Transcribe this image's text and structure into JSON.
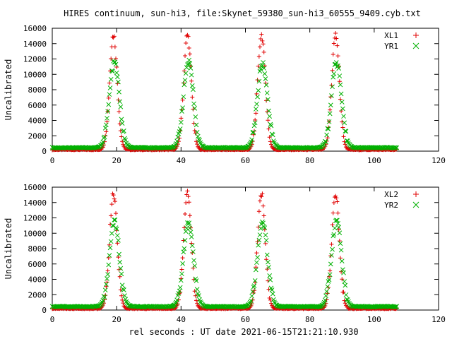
{
  "chart_data": [
    {
      "type": "scatter",
      "title": "HIRES continuum, sun-hi3, file:Skynet_59380_sun-hi3_60555_9409.cyb.txt",
      "xlabel": "",
      "ylabel": "Uncalibrated",
      "xlim": [
        0,
        120
      ],
      "ylim": [
        0,
        16000
      ],
      "x_ticks": [
        0,
        20,
        40,
        60,
        80,
        100,
        120
      ],
      "y_ticks": [
        0,
        2000,
        4000,
        6000,
        8000,
        10000,
        12000,
        14000,
        16000
      ],
      "x_tick_labels": [
        "0",
        "20",
        "40",
        "60",
        "80",
        "100",
        "120"
      ],
      "y_tick_labels": [
        "0",
        "2000",
        "4000",
        "6000",
        "8000",
        "10000",
        "12000",
        "14000",
        "16000"
      ],
      "grid": false,
      "legend_position": "top-right",
      "series": [
        {
          "name": "XL1",
          "marker": "+",
          "color": "#e00000",
          "baseline": 200,
          "peak": 15100,
          "peak_x": [
            19,
            42,
            65,
            88
          ],
          "width": 1.2,
          "x_start": 0,
          "x_end": 107
        },
        {
          "name": "YR1",
          "marker": "x",
          "color": "#00b000",
          "baseline": 450,
          "peak": 11500,
          "peak_x": [
            19.3,
            42.3,
            65.3,
            88.3
          ],
          "width": 1.55,
          "x_start": 0,
          "x_end": 107
        }
      ]
    },
    {
      "type": "scatter",
      "title": "",
      "xlabel": "rel seconds : UT date 2021-06-15T21:21:10.930",
      "ylabel": "Uncalibrated",
      "xlim": [
        0,
        120
      ],
      "ylim": [
        0,
        16000
      ],
      "x_ticks": [
        0,
        20,
        40,
        60,
        80,
        100,
        120
      ],
      "y_ticks": [
        0,
        2000,
        4000,
        6000,
        8000,
        10000,
        12000,
        14000,
        16000
      ],
      "x_tick_labels": [
        "0",
        "20",
        "40",
        "60",
        "80",
        "100",
        "120"
      ],
      "y_tick_labels": [
        "0",
        "2000",
        "4000",
        "6000",
        "8000",
        "10000",
        "12000",
        "14000",
        "16000"
      ],
      "grid": false,
      "legend_position": "top-right",
      "series": [
        {
          "name": "XL2",
          "marker": "+",
          "color": "#e00000",
          "baseline": 200,
          "peak": 15100,
          "peak_x": [
            19,
            42,
            65,
            88
          ],
          "width": 1.2,
          "x_start": 0,
          "x_end": 107
        },
        {
          "name": "YR2",
          "marker": "x",
          "color": "#00b000",
          "baseline": 450,
          "peak": 11500,
          "peak_x": [
            19.3,
            42.3,
            65.3,
            88.3
          ],
          "width": 1.55,
          "x_start": 0,
          "x_end": 107
        }
      ]
    }
  ]
}
